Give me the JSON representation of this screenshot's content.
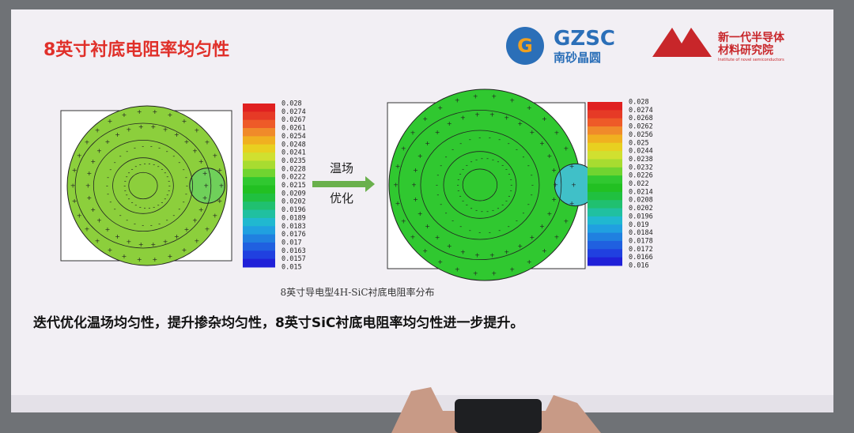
{
  "header": {
    "title": "8英寸衬底电阻率均匀性",
    "logo_gzsc": {
      "name": "GZSC",
      "subtitle": "南砂晶圆"
    },
    "logo_institute": {
      "line1": "新一代半导体",
      "line2": "材料研究院",
      "english": "Institute of novel semiconductors"
    }
  },
  "left_colorbar": {
    "labels": [
      "0.028",
      "0.0274",
      "0.0267",
      "0.0261",
      "0.0254",
      "0.0248",
      "0.0241",
      "0.0235",
      "0.0228",
      "0.0222",
      "0.0215",
      "0.0209",
      "0.0202",
      "0.0196",
      "0.0189",
      "0.0183",
      "0.0176",
      "0.017",
      "0.0163",
      "0.0157",
      "0.015"
    ]
  },
  "arrow": {
    "line1": "温场",
    "line2": "优化"
  },
  "right_colorbar": {
    "labels": [
      "0.028",
      "0.0274",
      "0.0268",
      "0.0262",
      "0.0256",
      "0.025",
      "0.0244",
      "0.0238",
      "0.0232",
      "0.0226",
      "0.022",
      "0.0214",
      "0.0208",
      "0.0202",
      "0.0196",
      "0.019",
      "0.0184",
      "0.0178",
      "0.0172",
      "0.0166",
      "0.016"
    ]
  },
  "caption": "8英寸导电型4H-SiC衬底电阻率分布",
  "conclusion": "迭代优化温场均匀性，提升掺杂均匀性，8英寸SiC衬底电阻率均匀性进一步提升。"
}
